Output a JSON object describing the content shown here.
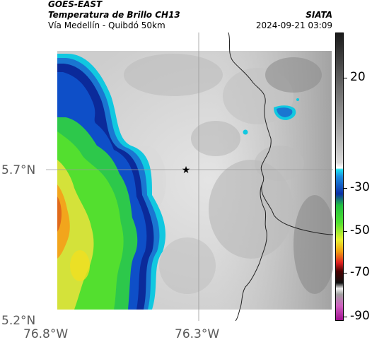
{
  "header": {
    "satellite": "GOES-EAST",
    "product": "Temperatura de Brillo CH13",
    "location": "Vía Medellín - Quibdó 50km",
    "organization": "SIATA",
    "timestamp": "2024-09-21 03:09"
  },
  "map": {
    "lat_ticks": [
      "5.7°N",
      "5.2°N"
    ],
    "lon_ticks": [
      "76.8°W",
      "76.3°W"
    ],
    "marker": "star-icon"
  },
  "colorbar": {
    "tick_labels": [
      "20",
      "-30",
      "-50",
      "-70",
      "-90"
    ]
  }
}
